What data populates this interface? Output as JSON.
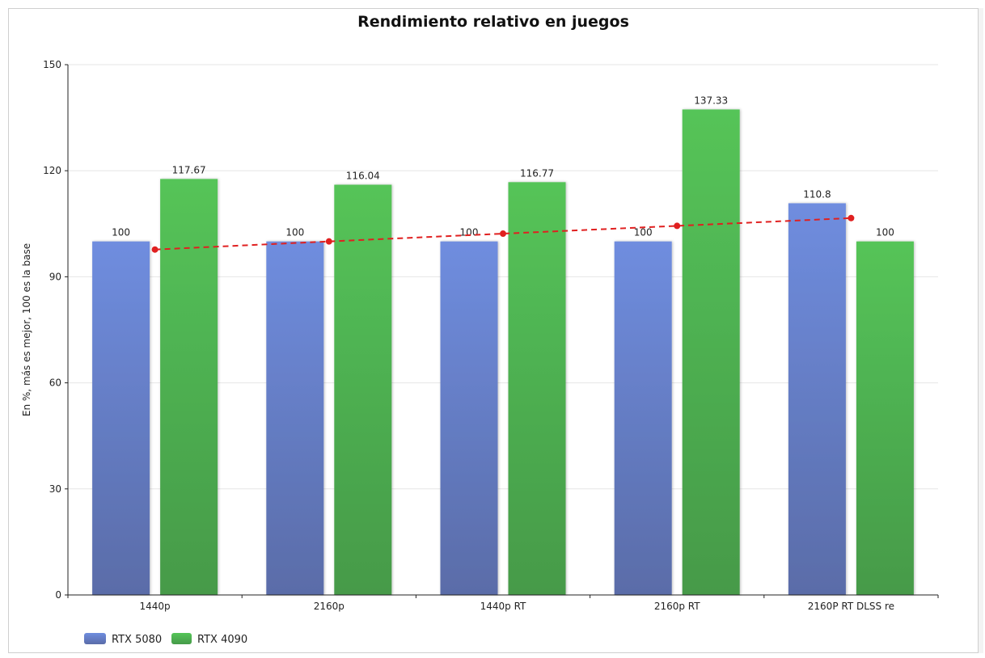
{
  "chart_data": {
    "type": "bar",
    "title": "Rendimiento relativo en juegos",
    "xlabel": "",
    "ylabel": "En %, más es mejor, 100 es la base",
    "ylim": [
      0,
      150
    ],
    "yticks": [
      0,
      30,
      60,
      90,
      120,
      150
    ],
    "grid": true,
    "legend_position": "bottom-left",
    "categories": [
      "1440p",
      "2160p",
      "1440p RT",
      "2160p RT",
      "2160P RT DLSS re"
    ],
    "series": [
      {
        "name": "RTX 5080",
        "values": [
          100,
          100,
          100,
          100,
          110.8
        ],
        "labels": [
          "100",
          "100",
          "100",
          "100",
          "110.8"
        ],
        "color": "#6b87d8"
      },
      {
        "name": "RTX 4090",
        "values": [
          117.67,
          116.04,
          116.77,
          137.33,
          100
        ],
        "labels": [
          "117.67",
          "116.04",
          "116.77",
          "137.33",
          "100"
        ],
        "color": "#52bd55"
      }
    ],
    "trendline": {
      "type": "dashed",
      "color": "#e02020",
      "values": [
        97.7,
        100,
        102.2,
        104.4,
        106.6
      ]
    }
  }
}
